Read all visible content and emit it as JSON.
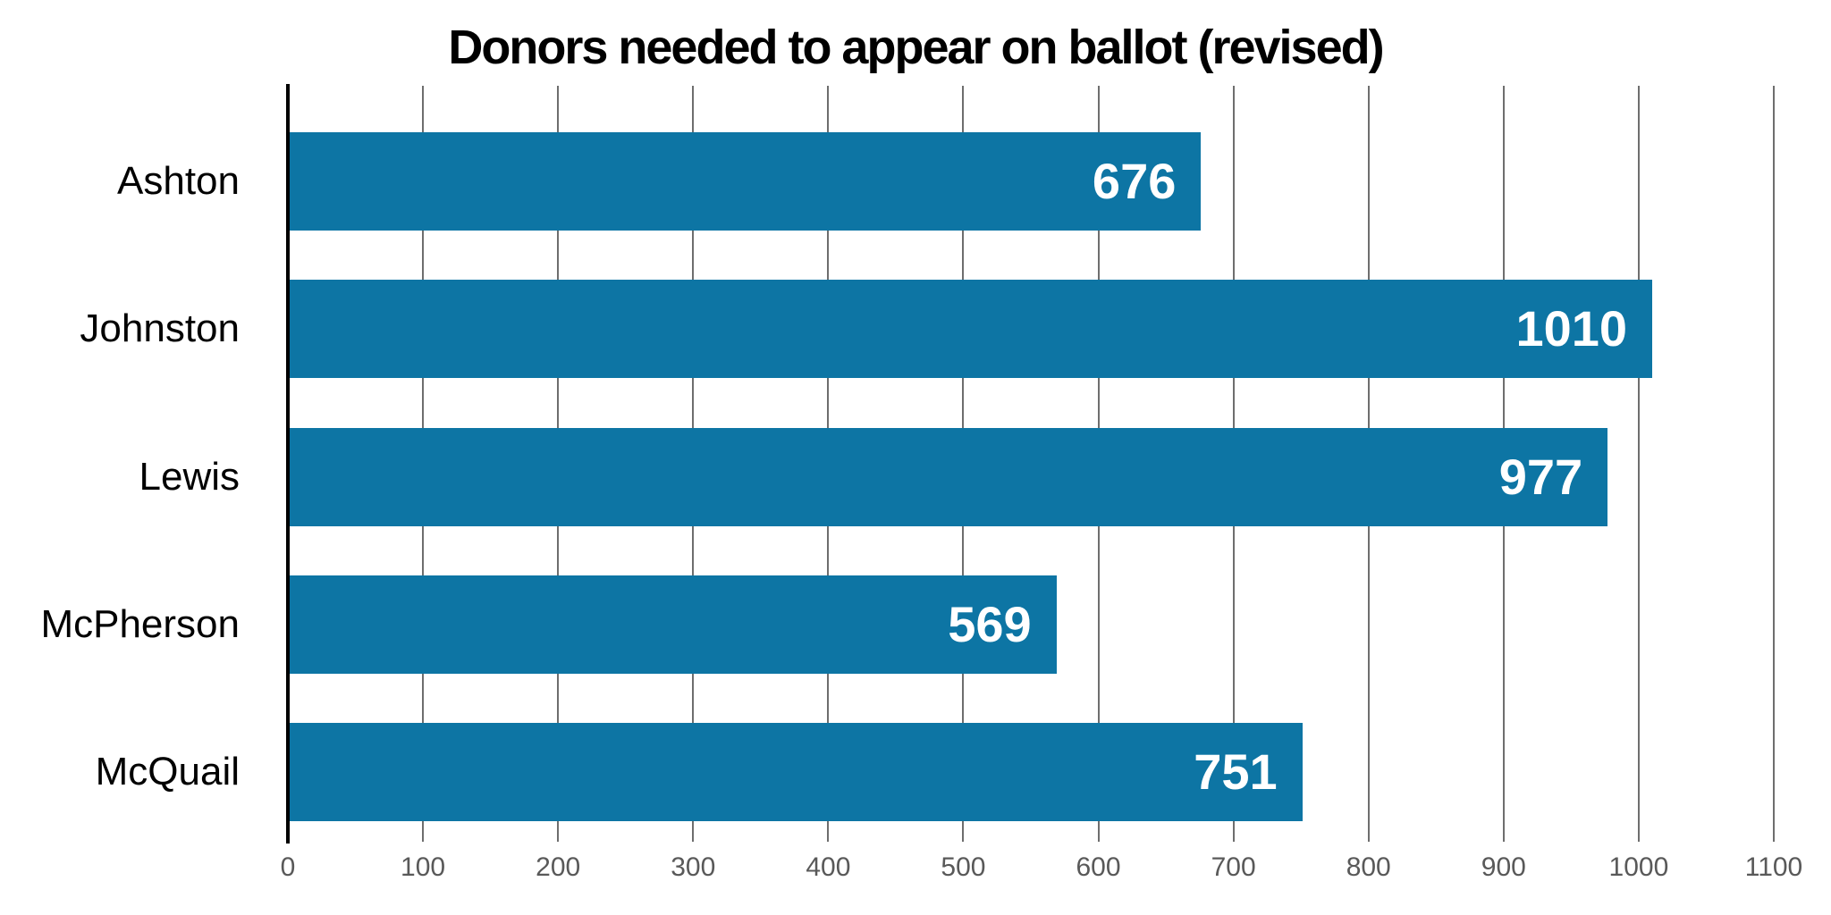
{
  "chart_data": {
    "type": "bar",
    "orientation": "horizontal",
    "title": "Donors needed to appear on ballot (revised)",
    "categories": [
      "Ashton",
      "Johnston",
      "Lewis",
      "McPherson",
      "McQuail"
    ],
    "values": [
      676,
      1010,
      977,
      569,
      751
    ],
    "value_labels": [
      "676",
      "1010",
      "977",
      "569",
      "751"
    ],
    "xlim": [
      0,
      1100
    ],
    "xticks": [
      0,
      100,
      200,
      300,
      400,
      500,
      600,
      700,
      800,
      900,
      1000,
      1100
    ],
    "grid": true,
    "legend": "none",
    "colors": {
      "bar": "#0D75A4",
      "value_label": "#FFFFFF",
      "gridline": "#6E6E6E",
      "axis_line": "#000000",
      "tick_label": "#595959",
      "category_label": "#000000",
      "title": "#000000",
      "background": "#FFFFFF"
    }
  }
}
